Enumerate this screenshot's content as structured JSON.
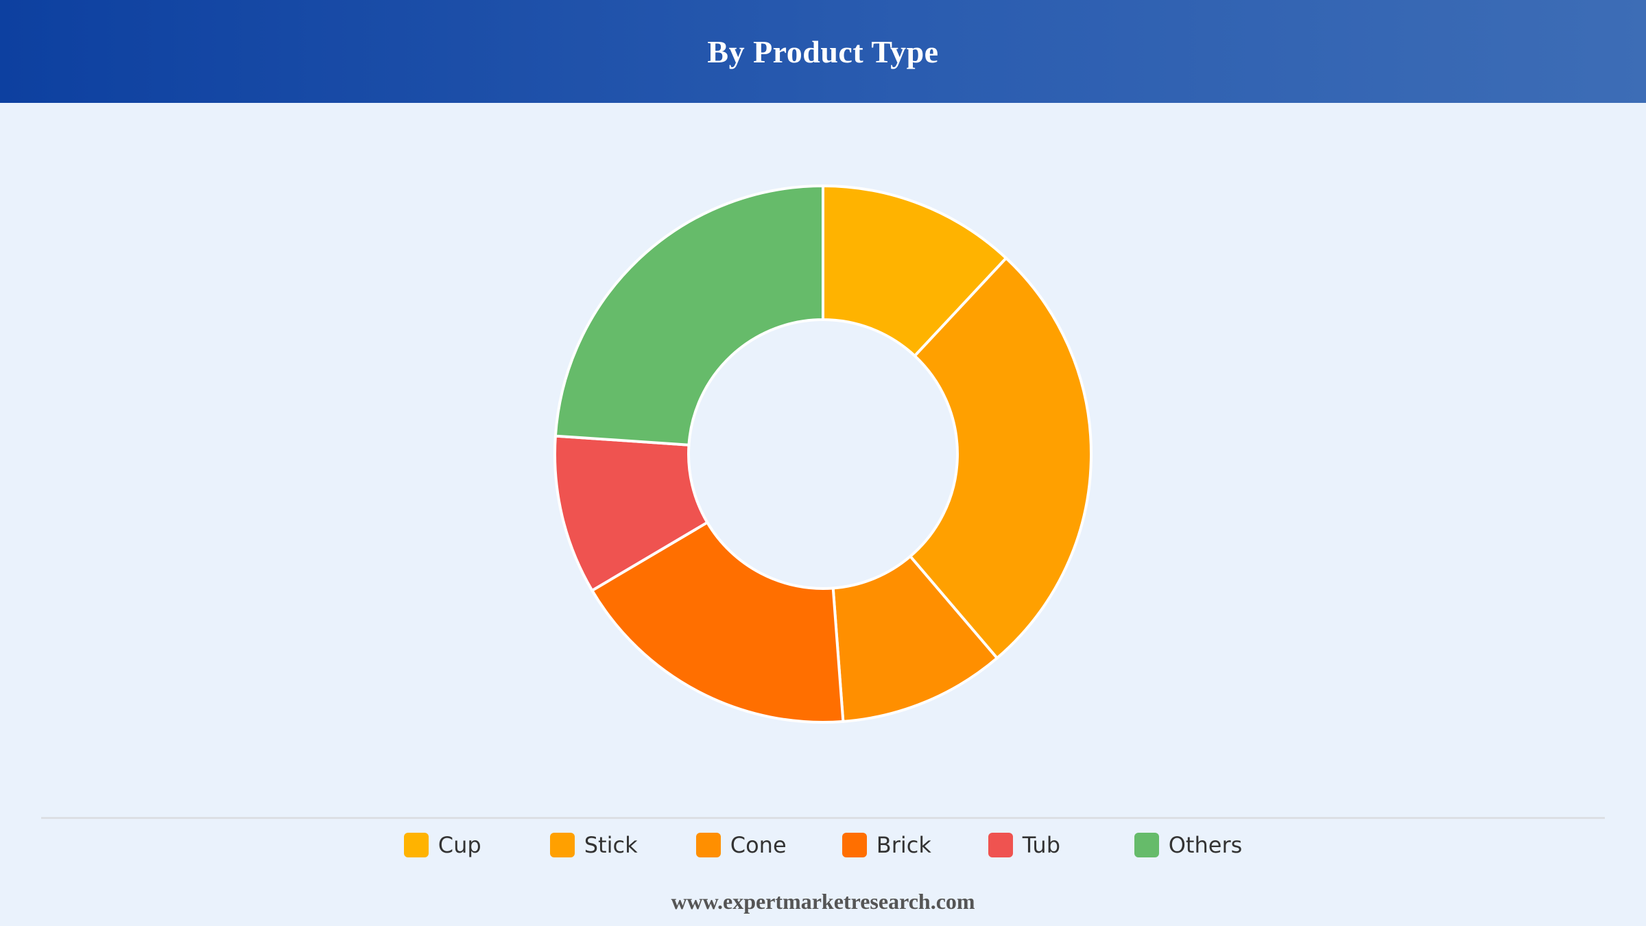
{
  "header": {
    "title": "By Product Type"
  },
  "chart_data": {
    "type": "pie",
    "donut": true,
    "title": "By Product Type",
    "categories": [
      "Cup",
      "Stick",
      "Cone",
      "Brick",
      "Tub",
      "Others"
    ],
    "values": [
      12.5,
      28,
      10.5,
      18.5,
      10,
      25
    ],
    "colors": [
      "#ffb300",
      "#ffa000",
      "#ff8f00",
      "#ff6f00",
      "#ef5350",
      "#66bb6a"
    ],
    "legend_position": "bottom",
    "slice_border_color": "#ffffff"
  },
  "footer": {
    "source": "www.expertmarketresearch.com"
  }
}
